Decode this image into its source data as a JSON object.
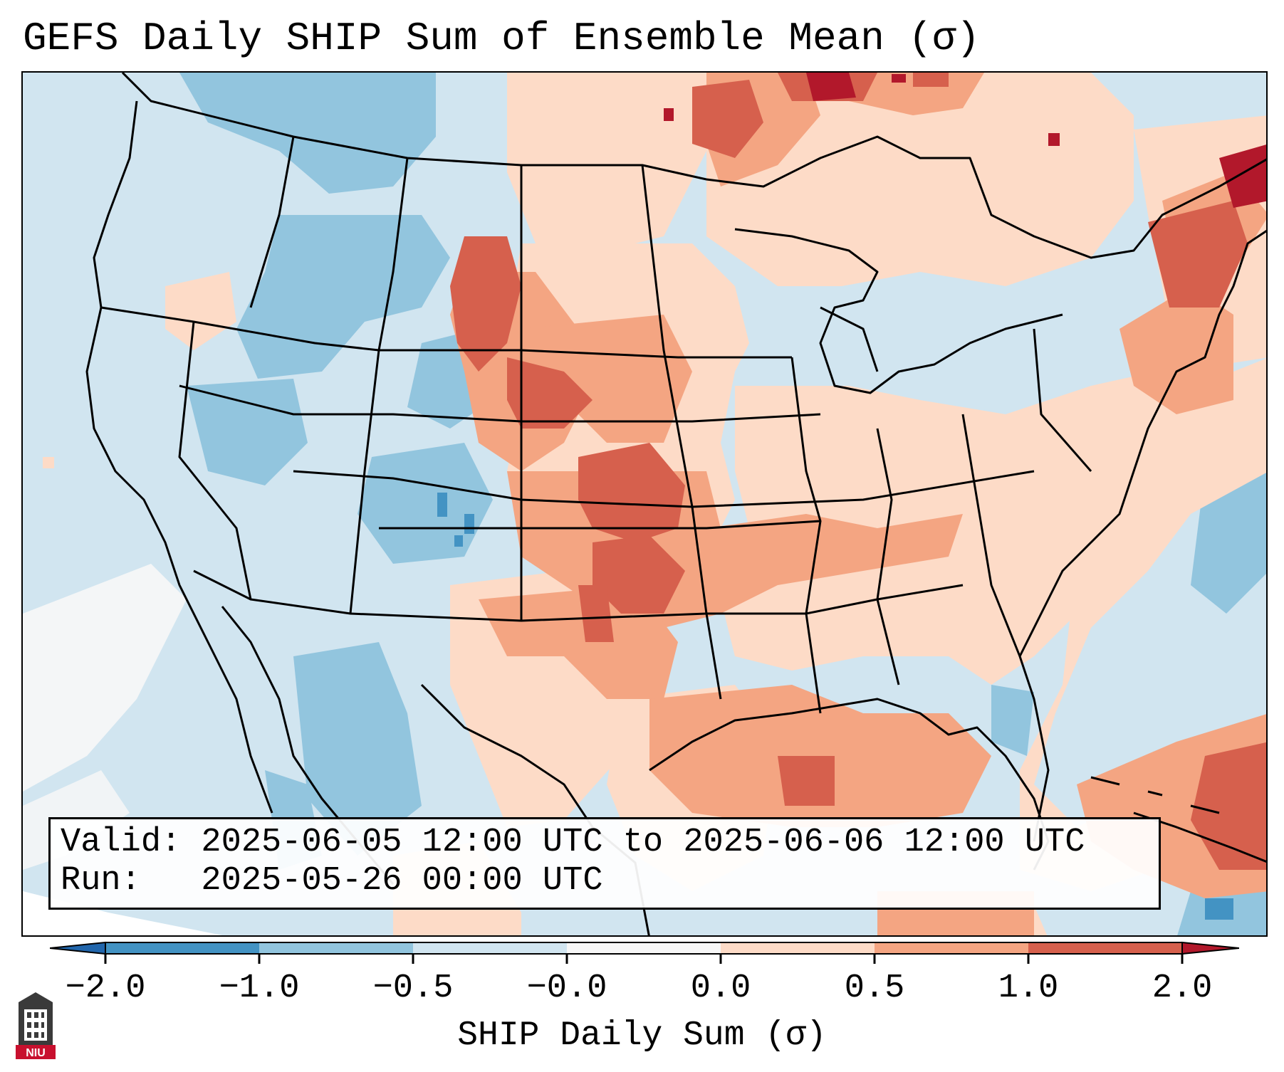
{
  "title": "GEFS Daily SHIP Sum of Ensemble Mean (σ)",
  "valid_line": "Valid: 2025-06-05 12:00 UTC to 2025-06-06 12:00 UTC",
  "run_line": "Run:   2025-05-26 00:00 UTC",
  "colorbar": {
    "label": "SHIP Daily Sum (σ)",
    "ticks": [
      "−2.0",
      "−1.0",
      "−0.5",
      "−0.0",
      "0.0",
      "0.5",
      "1.0",
      "2.0"
    ],
    "colors": [
      "#4393c3",
      "#92c5de",
      "#d1e5f0",
      "#f7f7f7",
      "#fddbc7",
      "#f4a582",
      "#d6604d"
    ],
    "under_color": "#2166ac",
    "over_color": "#b2182b"
  },
  "map": {
    "region": "CONUS",
    "background_color": "#d1e5f0",
    "ocean_white_color": "#f7f7f7"
  },
  "logo": {
    "text": "NIU",
    "color": "#c8102e"
  }
}
